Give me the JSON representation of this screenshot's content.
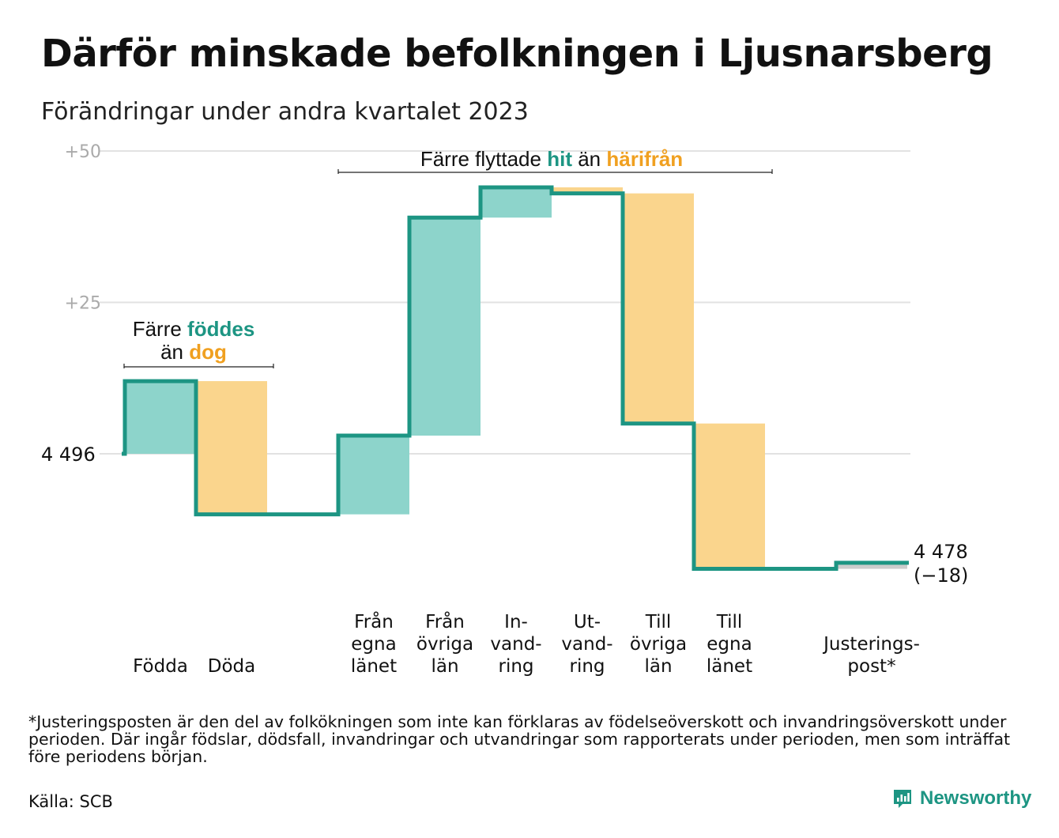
{
  "title": "Därför minskade befolkningen i Ljusnarsberg",
  "subtitle": "Förändringar under andra kvartalet 2023",
  "footnote": "*Justeringsposten är den del av folkökningen som inte kan förklaras av födelseöverskott och invandringsöverskott under perioden. Där ingår födslar, dödsfall, invandringar och utvandringar som rapporterats under perioden, men som inträffat före periodens början.",
  "source": "Källa: SCB",
  "brand": "Newsworthy",
  "colors": {
    "line": "#1d9583",
    "increase": "#8dd4cb",
    "decrease": "#fad58d",
    "adjust": "#cccccc",
    "grid": "#e2e2e2",
    "accent_teal": "#1d9583",
    "accent_orange": "#f0a020"
  },
  "chart_data": {
    "type": "waterfall",
    "start_value": 4496,
    "start_label": "4  496",
    "end_value": 4478,
    "end_label": "4 478",
    "end_change_label": "(−18)",
    "y_ticks": [
      {
        "value": 4521,
        "label": "+25"
      },
      {
        "value": 4546,
        "label": "+50"
      }
    ],
    "ylim": [
      4475,
      4546
    ],
    "grid": true,
    "steps": [
      {
        "category": "Födda",
        "label_lines": [
          "Födda"
        ],
        "delta": 12,
        "kind": "increase"
      },
      {
        "category": "Döda",
        "label_lines": [
          "Döda"
        ],
        "delta": -22,
        "kind": "decrease"
      },
      {
        "category": "",
        "label_lines": [],
        "delta": 0,
        "kind": "spacer"
      },
      {
        "category": "Från egna länet",
        "label_lines": [
          "Från",
          "egna",
          "länet"
        ],
        "delta": 13,
        "kind": "increase"
      },
      {
        "category": "Från övriga län",
        "label_lines": [
          "Från",
          "övriga",
          "län"
        ],
        "delta": 36,
        "kind": "increase"
      },
      {
        "category": "In-vand-ring",
        "label_lines": [
          "In-",
          "vand-",
          "ring"
        ],
        "delta": 5,
        "kind": "increase"
      },
      {
        "category": "Ut-vand-ring",
        "label_lines": [
          "Ut-",
          "vand-",
          "ring"
        ],
        "delta": -1,
        "kind": "decrease"
      },
      {
        "category": "Till övriga län",
        "label_lines": [
          "Till",
          "övriga",
          "län"
        ],
        "delta": -38,
        "kind": "decrease"
      },
      {
        "category": "Till egna länet",
        "label_lines": [
          "Till",
          "egna",
          "länet"
        ],
        "delta": -24,
        "kind": "decrease"
      },
      {
        "category": "",
        "label_lines": [],
        "delta": 0,
        "kind": "spacer"
      },
      {
        "category": "Justerings-post*",
        "label_lines": [
          "Justerings-",
          "post*"
        ],
        "delta": 1,
        "kind": "adjust"
      }
    ],
    "annotations": [
      {
        "id": "births",
        "parts": [
          {
            "line": 1,
            "text": "Färre",
            "color": "#111111",
            "bold": false
          },
          {
            "line": 1,
            "text": "föddes",
            "color": "#1d9583",
            "bold": true
          },
          {
            "line": 2,
            "text": "än",
            "color": "#111111",
            "bold": false
          },
          {
            "line": 2,
            "text": "dog",
            "color": "#f0a020",
            "bold": true
          }
        ]
      },
      {
        "id": "moves",
        "parts": [
          {
            "line": 1,
            "text": "Färre flyttade",
            "color": "#111111",
            "bold": false
          },
          {
            "line": 1,
            "text": "hit",
            "color": "#1d9583",
            "bold": true
          },
          {
            "line": 1,
            "text": "än",
            "color": "#111111",
            "bold": false
          },
          {
            "line": 1,
            "text": "härifrån",
            "color": "#f0a020",
            "bold": true
          }
        ]
      }
    ]
  }
}
